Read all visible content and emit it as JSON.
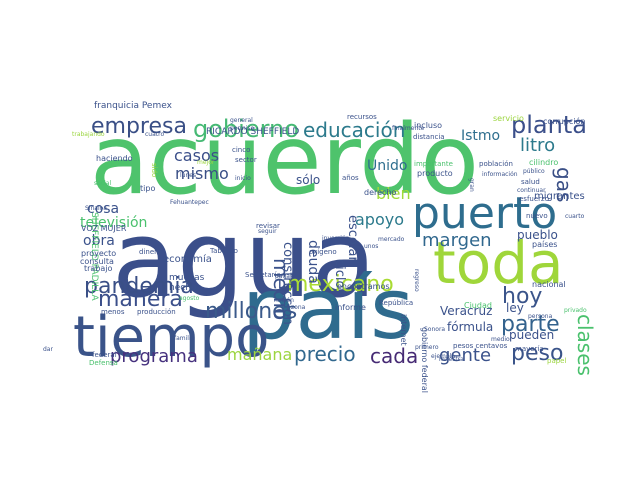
{
  "words": [
    {
      "text": "agua",
      "color": "#3b4f8a"
    },
    {
      "text": "acuerdo",
      "color": "#4ec36c"
    },
    {
      "text": "país",
      "color": "#2f6b8e"
    },
    {
      "text": "toda",
      "color": "#9fd63a"
    },
    {
      "text": "tiempo",
      "color": "#3a5389"
    },
    {
      "text": "puerto",
      "color": "#2e6d8e"
    },
    {
      "text": "gobierno",
      "color": "#46b974"
    },
    {
      "text": "empresa",
      "color": "#3a4f86"
    },
    {
      "text": "educación",
      "color": "#2c7a8c"
    },
    {
      "text": "planta",
      "color": "#3b4f8a"
    },
    {
      "text": "pandemia",
      "color": "#3a4f86"
    },
    {
      "text": "mexicano",
      "color": "#a9db33"
    },
    {
      "text": "millones",
      "color": "#3b5a8b"
    },
    {
      "text": "manera",
      "color": "#3b4f8a"
    },
    {
      "text": "precio",
      "color": "#31688e"
    },
    {
      "text": "cada",
      "color": "#462a74"
    },
    {
      "text": "gente",
      "color": "#3b528b"
    },
    {
      "text": "peso",
      "color": "#3a5389"
    },
    {
      "text": "parte",
      "color": "#33628d"
    },
    {
      "text": "hoy",
      "color": "#3a548a"
    },
    {
      "text": "clases",
      "color": "#4ac16d"
    },
    {
      "text": "programa",
      "color": "#46317e"
    },
    {
      "text": "mañana",
      "color": "#9cd540"
    },
    {
      "text": "litro",
      "color": "#2c7a8c"
    },
    {
      "text": "gas",
      "color": "#3a4f86"
    },
    {
      "text": "margen",
      "color": "#31688e"
    },
    {
      "text": "medio",
      "color": "#3b528b"
    },
    {
      "text": "casos",
      "color": "#3b4f8a"
    },
    {
      "text": "mismo",
      "color": "#3a4f86"
    },
    {
      "text": "apoyo",
      "color": "#2c7a8c"
    },
    {
      "text": "bien",
      "color": "#a0da39"
    },
    {
      "text": "Unido",
      "color": "#2e6e8e"
    },
    {
      "text": "Istmo",
      "color": "#2e6e8e"
    },
    {
      "text": "televisión",
      "color": "#4ac16d"
    },
    {
      "text": "cosa",
      "color": "#3b528b"
    },
    {
      "text": "obra",
      "color": "#3b528b"
    },
    {
      "text": "deuda",
      "color": "#3b528b"
    },
    {
      "text": "construcción",
      "color": "#3b528b"
    },
    {
      "text": "ciclo",
      "color": "#3b528b"
    },
    {
      "text": "escolar",
      "color": "#3b528b"
    },
    {
      "text": "sólo",
      "color": "#3b528b"
    },
    {
      "text": "pueblo",
      "color": "#3b528b"
    },
    {
      "text": "ley",
      "color": "#3b528b"
    },
    {
      "text": "pueden",
      "color": "#3b528b"
    },
    {
      "text": "fórmula",
      "color": "#3b528b"
    },
    {
      "text": "Veracruz",
      "color": "#3b528b"
    },
    {
      "text": "economía",
      "color": "#3b528b"
    },
    {
      "text": "muchas",
      "color": "#3b528b"
    },
    {
      "text": "hecho",
      "color": "#3b528b"
    },
    {
      "text": "franquicia Pemex",
      "color": "#3b528b"
    },
    {
      "text": "RICARDO SHEFFIELD",
      "color": "#3b528b"
    },
    {
      "text": "SHEFFIELD PADILLA",
      "color": "#4ac16d"
    },
    {
      "text": "VOZ MUJER",
      "color": "#3b528b"
    },
    {
      "text": "gobierno federal",
      "color": "#3b528b"
    },
    {
      "text": "incluso",
      "color": "#3b528b"
    },
    {
      "text": "servicio",
      "color": "#9cd540"
    },
    {
      "text": "corrupción",
      "color": "#3b528b"
    },
    {
      "text": "cilindro",
      "color": "#4ac16d"
    },
    {
      "text": "población",
      "color": "#3b528b"
    },
    {
      "text": "migrantes",
      "color": "#3b528b"
    },
    {
      "text": "nacional",
      "color": "#3b528b"
    },
    {
      "text": "países",
      "color": "#3b528b"
    },
    {
      "text": "Ciudad",
      "color": "#4ac16d"
    },
    {
      "text": "internet",
      "color": "#3b528b"
    },
    {
      "text": "informe",
      "color": "#3b528b"
    },
    {
      "text": "encontramos",
      "color": "#3b528b"
    },
    {
      "text": "derecho",
      "color": "#3b528b"
    },
    {
      "text": "producto",
      "color": "#3b528b"
    },
    {
      "text": "haciendo",
      "color": "#3b528b"
    },
    {
      "text": "proyecto",
      "color": "#3b528b"
    },
    {
      "text": "consulta",
      "color": "#3b528b"
    },
    {
      "text": "trabajo",
      "color": "#3b528b"
    },
    {
      "text": "dinero",
      "color": "#3b528b"
    },
    {
      "text": "tipo",
      "color": "#3b528b"
    },
    {
      "text": "Tabasco",
      "color": "#3b528b"
    },
    {
      "text": "Secretaría",
      "color": "#3b528b"
    },
    {
      "text": "República",
      "color": "#3b528b"
    },
    {
      "text": "pesos centavos",
      "color": "#3b528b"
    },
    {
      "text": "mayoría",
      "color": "#3b528b"
    },
    {
      "text": "papel",
      "color": "#9cd540"
    },
    {
      "text": "salud",
      "color": "#3b528b"
    },
    {
      "text": "esfuerzo",
      "color": "#3b528b"
    },
    {
      "text": "nuevo",
      "color": "#3b528b"
    },
    {
      "text": "años",
      "color": "#3b528b"
    },
    {
      "text": "importante",
      "color": "#4ac16d"
    },
    {
      "text": "distancia",
      "color": "#3b528b"
    },
    {
      "text": "oxígeno",
      "color": "#3b528b"
    },
    {
      "text": "revisar",
      "color": "#3b528b"
    },
    {
      "text": "sector",
      "color": "#3b528b"
    },
    {
      "text": "cinco",
      "color": "#3b528b"
    },
    {
      "text": "recursos",
      "color": "#3b528b"
    },
    {
      "text": "finalmente",
      "color": "#3b528b"
    },
    {
      "text": "menos",
      "color": "#3b528b"
    },
    {
      "text": "producción",
      "color": "#3b528b"
    },
    {
      "text": "federal",
      "color": "#3b528b"
    },
    {
      "text": "Defensa",
      "color": "#4ac16d"
    },
    {
      "text": "agosto",
      "color": "#4ac16d"
    },
    {
      "text": "familia",
      "color": "#3b528b"
    },
    {
      "text": "general",
      "color": "#3b528b"
    },
    {
      "text": "permiso",
      "color": "#3b528b"
    },
    {
      "text": "cuatro",
      "color": "#3b528b"
    },
    {
      "text": "Fehuantepec",
      "color": "#3b528b"
    },
    {
      "text": "seguir",
      "color": "#3b528b"
    },
    {
      "text": "trabajando",
      "color": "#9cd540"
    },
    {
      "text": "sido",
      "color": "#9cd540"
    },
    {
      "text": "mejor",
      "color": "#9cd540"
    },
    {
      "text": "social",
      "color": "#4ac16d"
    },
    {
      "text": "Sinaloa",
      "color": "#3b528b"
    },
    {
      "text": "unos",
      "color": "#3b528b"
    },
    {
      "text": "mercado",
      "color": "#3b528b"
    },
    {
      "text": "zona",
      "color": "#3b528b"
    },
    {
      "text": "nación",
      "color": "#3b528b"
    },
    {
      "text": "pagar",
      "color": "#3b528b"
    },
    {
      "text": "lunes",
      "color": "#3b528b"
    },
    {
      "text": "inicio",
      "color": "#3b528b"
    },
    {
      "text": "dar",
      "color": "#3b528b"
    },
    {
      "text": "privado",
      "color": "#4ac16d"
    },
    {
      "text": "persona",
      "color": "#3b528b"
    },
    {
      "text": "información",
      "color": "#3b528b"
    },
    {
      "text": "público",
      "color": "#3b528b"
    },
    {
      "text": "continuar",
      "color": "#3b528b"
    },
    {
      "text": "regreso",
      "color": "#3b528b"
    },
    {
      "text": "ejemplo",
      "color": "#3b528b"
    },
    {
      "text": "Sonora",
      "color": "#3b528b"
    },
    {
      "text": "maestra",
      "color": "#3b528b"
    },
    {
      "text": "primero",
      "color": "#3b528b"
    },
    {
      "text": "medio",
      "color": "#3b528b"
    },
    {
      "text": "gran",
      "color": "#3b528b"
    },
    {
      "text": "inversión",
      "color": "#3b528b"
    },
    {
      "text": "cuarto",
      "color": "#3b528b"
    },
    {
      "text": "fuerza",
      "color": "#4ac16d"
    }
  ]
}
